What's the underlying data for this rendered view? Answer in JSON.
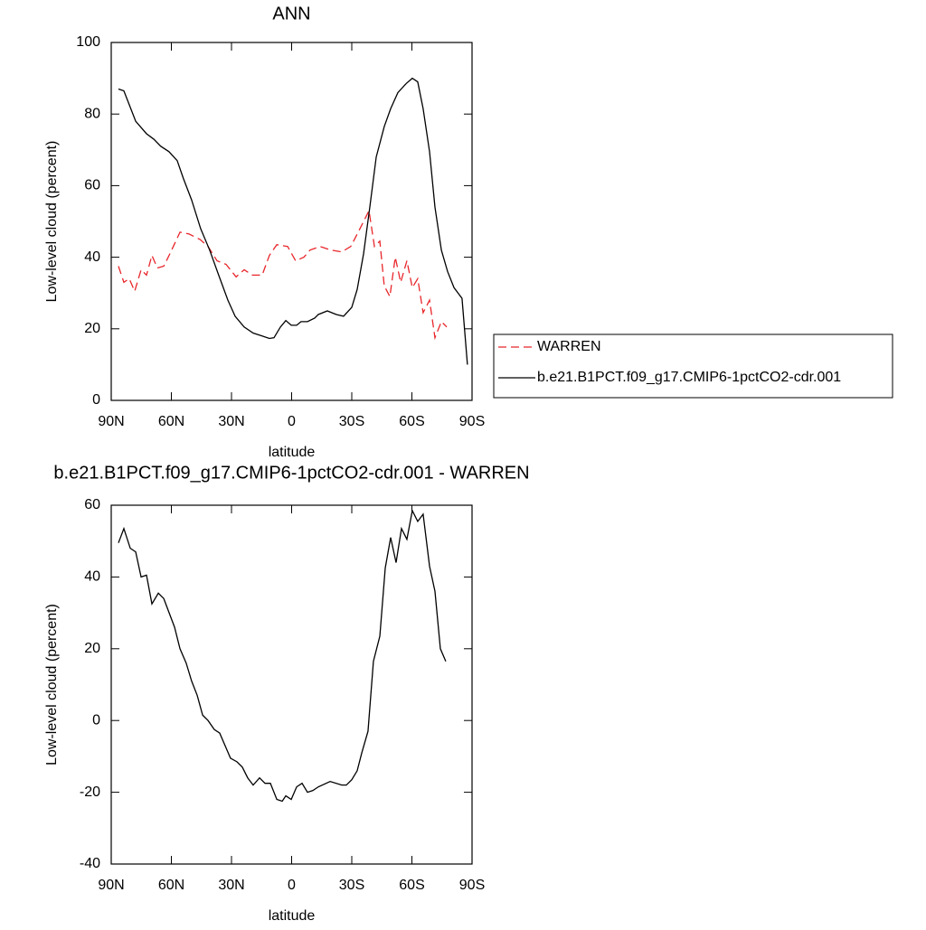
{
  "chart_data": [
    {
      "type": "line",
      "title": "ANN",
      "xlabel": "latitude",
      "ylabel": "Low-level cloud (percent)",
      "xlim": [
        90,
        -90
      ],
      "xticks": [
        {
          "value": 90,
          "label": "90N"
        },
        {
          "value": 60,
          "label": "60N"
        },
        {
          "value": 30,
          "label": "30N"
        },
        0,
        {
          "value": -30,
          "label": "30S"
        },
        {
          "value": -60,
          "label": "60S"
        },
        {
          "value": -90,
          "label": "90S"
        }
      ],
      "ylim": [
        0,
        100
      ],
      "yticks": [
        0,
        20,
        40,
        60,
        80,
        100
      ],
      "legend": "right",
      "series": [
        {
          "name": "WARREN",
          "color": "#e8262b",
          "dashed": true,
          "x": [
            86.4,
            83.7,
            81,
            78.3,
            75.1,
            72.4,
            69.7,
            67,
            63.8,
            60.7,
            55.7,
            51.2,
            45.8,
            41.7,
            37.2,
            32.7,
            27.7,
            23.7,
            19.6,
            14.7,
            11.1,
            7.4,
            2,
            -2,
            -6.1,
            -9.2,
            -14.2,
            -19.6,
            -25,
            -29.5,
            -34.1,
            -38.6,
            -41.3,
            -44,
            -46.2,
            -49,
            -51.7,
            -54.4,
            -57.5,
            -60.2,
            -62.9,
            -65.6,
            -68.8,
            -71.5,
            -74.7,
            -77.4
          ],
          "values": [
            37.5,
            33,
            34,
            30.5,
            36.5,
            35,
            40.5,
            37,
            37.5,
            41,
            47,
            46.5,
            45,
            43,
            39,
            38,
            34.5,
            36.5,
            35,
            35,
            40.5,
            43.5,
            43,
            39,
            40,
            42,
            43,
            42,
            41.5,
            43,
            48,
            53,
            43,
            44.5,
            32,
            29,
            40,
            33,
            39,
            31.5,
            34,
            24.5,
            28,
            17.5,
            22,
            20.5
          ]
        },
        {
          "name": "b.e21.B1PCT.f09_g17.CMIP6-1pctCO2-cdr.001",
          "color": "#000000",
          "dashed": false,
          "x": [
            86.4,
            83.7,
            77.8,
            72.4,
            68.8,
            65.3,
            61.2,
            57.1,
            54,
            49.9,
            45.4,
            40.9,
            36.4,
            31.8,
            28.2,
            23.7,
            19.2,
            14.7,
            11.1,
            8.8,
            5.6,
            2.9,
            0.2,
            -2.5,
            -4.7,
            -7.9,
            -11.5,
            -13.3,
            -17.8,
            -22.3,
            -25.9,
            -30,
            -32.7,
            -35.9,
            -39,
            -42.2,
            -46.2,
            -49.4,
            -53,
            -57.1,
            -60.2,
            -62.9,
            -65.6,
            -68.8,
            -71.5,
            -74.7,
            -77.8,
            -81,
            -85,
            -87.7
          ],
          "values": [
            87,
            86.5,
            78,
            74.5,
            73,
            71,
            69.5,
            67,
            62,
            56,
            48,
            42,
            35,
            28,
            23.5,
            20.5,
            18.8,
            18,
            17.3,
            17.5,
            20.5,
            22.3,
            21,
            21,
            22,
            22,
            23,
            24,
            25,
            24,
            23.5,
            26,
            31,
            41,
            54,
            68,
            76.5,
            81.5,
            86,
            88.5,
            90,
            89,
            81.5,
            69.5,
            54,
            42,
            36,
            31.5,
            28.5,
            10
          ]
        }
      ]
    },
    {
      "type": "line",
      "title": "b.e21.B1PCT.f09_g17.CMIP6-1pctCO2-cdr.001 - WARREN",
      "xlabel": "latitude",
      "ylabel": "Low-level cloud (percent)",
      "xlim": [
        90,
        -90
      ],
      "xticks": [
        {
          "value": 90,
          "label": "90N"
        },
        {
          "value": 60,
          "label": "60N"
        },
        {
          "value": 30,
          "label": "30N"
        },
        0,
        {
          "value": -30,
          "label": "30S"
        },
        {
          "value": -60,
          "label": "60S"
        },
        {
          "value": -90,
          "label": "90S"
        }
      ],
      "ylim": [
        -40,
        60
      ],
      "yticks": [
        -40,
        -20,
        0,
        20,
        40,
        60
      ],
      "color": "#000000",
      "x": [
        86.4,
        83.7,
        80.5,
        77.8,
        75.1,
        72.4,
        69.7,
        66.5,
        63.8,
        61.1,
        58.4,
        55.7,
        52.6,
        49.9,
        47.1,
        44.4,
        41.7,
        38.6,
        35.9,
        33.2,
        30.5,
        27.3,
        24.6,
        21.9,
        19.2,
        16,
        13.3,
        10.6,
        7.4,
        4.7,
        2.9,
        0.2,
        -2.5,
        -5.2,
        -7.9,
        -10.6,
        -13.3,
        -19.2,
        -25,
        -27.3,
        -30,
        -32.7,
        -35,
        -38.1,
        -40.8,
        -44,
        -46.7,
        -49.4,
        -52.1,
        -54.8,
        -57.5,
        -60.2,
        -62.9,
        -65.6,
        -68.8,
        -71.5,
        -74.2,
        -76.9
      ],
      "values": [
        49.5,
        53.5,
        48,
        47,
        40,
        40.5,
        32.5,
        35.5,
        34,
        30,
        26,
        20,
        16,
        11,
        7,
        1.5,
        0,
        -2.5,
        -3.5,
        -7,
        -10.5,
        -11.5,
        -13,
        -16,
        -18,
        -16,
        -17.5,
        -17.5,
        -22,
        -22.5,
        -21,
        -22,
        -18.5,
        -17.5,
        -20,
        -19.5,
        -18.5,
        -17,
        -18,
        -18,
        -16.5,
        -14,
        -9,
        -3,
        16.5,
        23.5,
        42.5,
        51,
        44,
        53.5,
        50.5,
        58.5,
        55.5,
        57.5,
        43,
        36,
        20,
        16.5
      ]
    }
  ]
}
